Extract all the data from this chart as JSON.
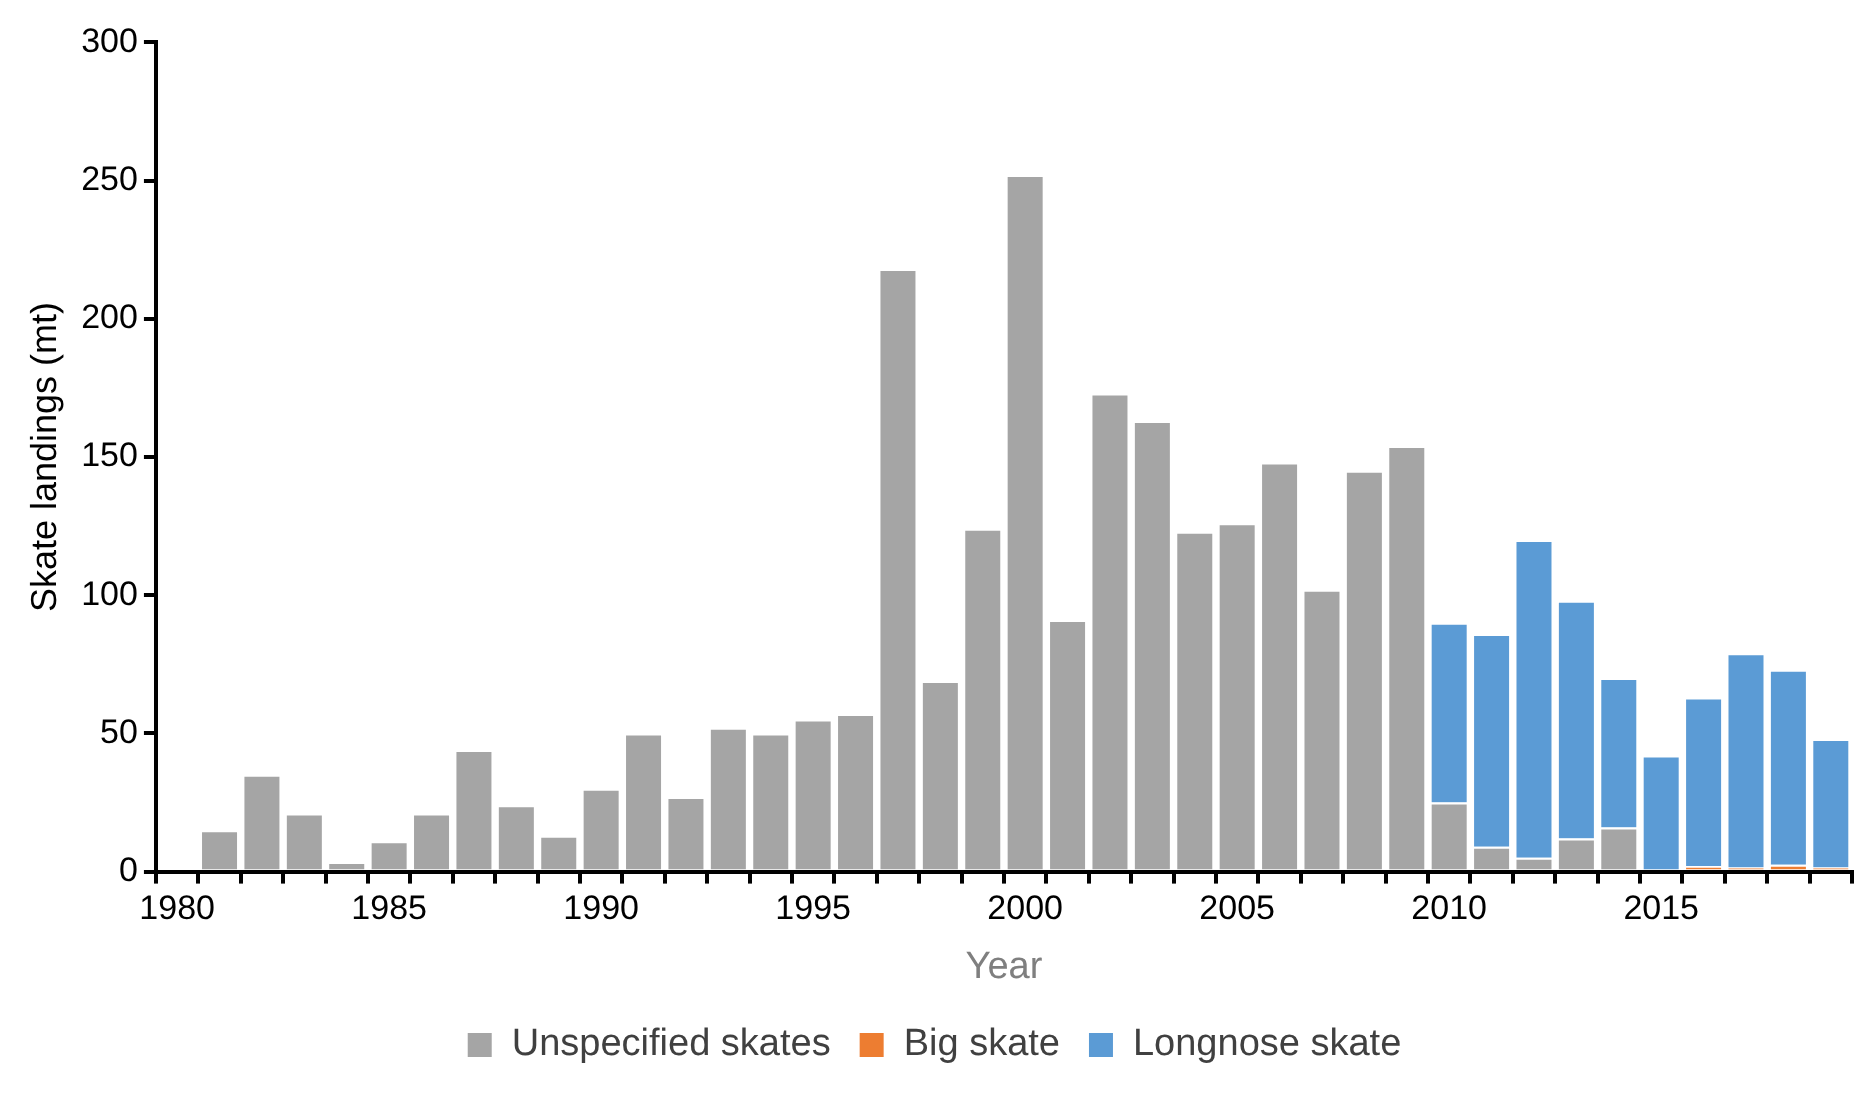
{
  "chart_data": {
    "type": "bar",
    "stacked": true,
    "xlabel": "Year",
    "ylabel": "Skate landings (mt)",
    "categories": [
      "1980",
      null,
      null,
      null,
      null,
      "1985",
      null,
      null,
      null,
      null,
      "1990",
      null,
      null,
      null,
      null,
      "1995",
      null,
      null,
      null,
      null,
      "2000",
      null,
      null,
      null,
      null,
      "2005",
      null,
      null,
      null,
      null,
      "2010",
      null,
      null,
      null,
      null,
      "2015",
      null,
      null,
      null,
      null
    ],
    "series": [
      {
        "name": "Unspecified skates",
        "color": "#a5a5a5",
        "values": [
          null,
          15,
          35,
          21,
          3.5,
          11,
          21,
          44,
          24,
          13,
          30,
          50,
          27,
          52,
          50,
          55,
          57,
          218,
          69,
          124,
          252,
          91,
          173,
          163,
          123,
          126,
          148,
          102,
          145,
          154,
          25,
          9,
          5,
          12,
          16,
          0,
          0,
          0,
          0,
          0
        ]
      },
      {
        "name": "Big skate",
        "color": "#ed7d31",
        "values": [
          null,
          null,
          null,
          null,
          null,
          null,
          null,
          null,
          null,
          null,
          null,
          null,
          null,
          null,
          null,
          null,
          null,
          null,
          null,
          null,
          null,
          null,
          null,
          null,
          null,
          null,
          null,
          null,
          null,
          null,
          null,
          null,
          null,
          null,
          null,
          0,
          2,
          1.5,
          2.5,
          1.5
        ]
      },
      {
        "name": "Longnose skate",
        "color": "#5b9bd5",
        "values": [
          null,
          null,
          null,
          null,
          null,
          null,
          null,
          null,
          null,
          null,
          null,
          null,
          null,
          null,
          null,
          null,
          null,
          null,
          null,
          null,
          null,
          null,
          null,
          null,
          null,
          null,
          null,
          null,
          null,
          null,
          65,
          77,
          115,
          86,
          54,
          42,
          61,
          77.5,
          70.5,
          46.5
        ]
      }
    ],
    "ylim": [
      0,
      300
    ],
    "yticks": [
      0,
      50,
      100,
      150,
      200,
      250,
      300
    ],
    "grid": false,
    "legend": "bottom"
  }
}
